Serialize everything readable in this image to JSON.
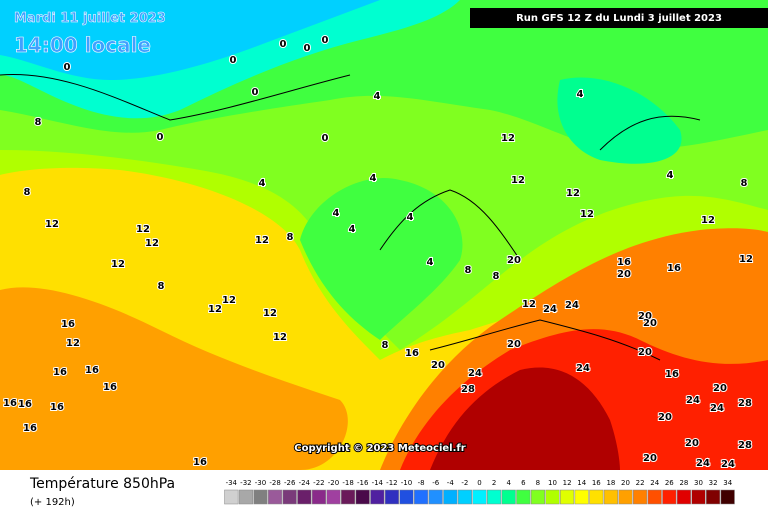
{
  "header": {
    "date": "Mardi 11 juillet 2023",
    "time": "14:00 locale",
    "run": "Run GFS 12 Z du Lundi 3 juillet 2023"
  },
  "copyright": "Copyright © 2023 Meteociel.fr",
  "footer": {
    "title": "Température 850hPa",
    "subtitle": "(+ 192h)"
  },
  "scale": {
    "ticks": [
      -34,
      -32,
      -30,
      -28,
      -26,
      -24,
      -22,
      -20,
      -18,
      -16,
      -14,
      -12,
      -10,
      -8,
      -6,
      -4,
      -2,
      0,
      2,
      4,
      6,
      8,
      10,
      12,
      14,
      16,
      18,
      20,
      22,
      24,
      26,
      28,
      30,
      32,
      34
    ],
    "colors": [
      "#d0d0d0",
      "#a8a8a8",
      "#808080",
      "#9a5a9a",
      "#7a3a7a",
      "#6a1f6a",
      "#8a2a8a",
      "#a040a0",
      "#6a1a5a",
      "#4a0a4a",
      "#5020a0",
      "#3030c0",
      "#2050e0",
      "#2070ff",
      "#2090ff",
      "#00b0ff",
      "#00d0ff",
      "#00f0ff",
      "#00ffd0",
      "#00ff90",
      "#40ff40",
      "#80ff20",
      "#b0ff00",
      "#e0ff00",
      "#ffff00",
      "#ffe000",
      "#ffc000",
      "#ffa000",
      "#ff8000",
      "#ff5000",
      "#ff2000",
      "#e00000",
      "#b00000",
      "#800000",
      "#400000"
    ]
  },
  "contour_labels": [
    0,
    0,
    0,
    0,
    0,
    0,
    0,
    0,
    8,
    8,
    4,
    4,
    4,
    4,
    4,
    4,
    4,
    4,
    12,
    12,
    12,
    12,
    12,
    12,
    12,
    12,
    12,
    12,
    8,
    8,
    12,
    12,
    12,
    12,
    16,
    12,
    16,
    16,
    16,
    16,
    16,
    16,
    16,
    16,
    8,
    16,
    20,
    24,
    28,
    24,
    24,
    16,
    20,
    16,
    20,
    20,
    24,
    20,
    16,
    20,
    24,
    24,
    28,
    20,
    20,
    28,
    24,
    24,
    20,
    8,
    8,
    20,
    12,
    20,
    12,
    8,
    4
  ]
}
